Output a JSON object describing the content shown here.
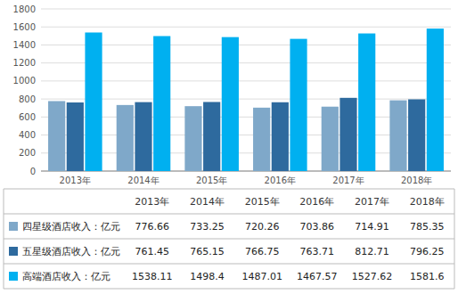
{
  "chart_data": {
    "type": "bar",
    "categories": [
      "2013年",
      "2014年",
      "2015年",
      "2016年",
      "2017年",
      "2018年"
    ],
    "series": [
      {
        "name": "四星级酒店收入：亿元",
        "color": "#7fa8c9",
        "values": [
          776.66,
          733.25,
          720.26,
          703.86,
          714.91,
          785.35
        ]
      },
      {
        "name": "五星级酒店收入：亿元",
        "color": "#2e6a9e",
        "values": [
          761.45,
          765.15,
          766.75,
          763.71,
          812.71,
          796.25
        ]
      },
      {
        "name": "高端酒店收入：亿元",
        "color": "#00b0f0",
        "values": [
          1538.11,
          1498.4,
          1487.01,
          1467.57,
          1527.62,
          1581.6
        ]
      }
    ],
    "ylim": [
      0,
      1800
    ],
    "yticks": [
      0,
      200,
      400,
      600,
      800,
      1000,
      1200,
      1400,
      1600,
      1800
    ],
    "grid": true,
    "data_labels": true
  }
}
